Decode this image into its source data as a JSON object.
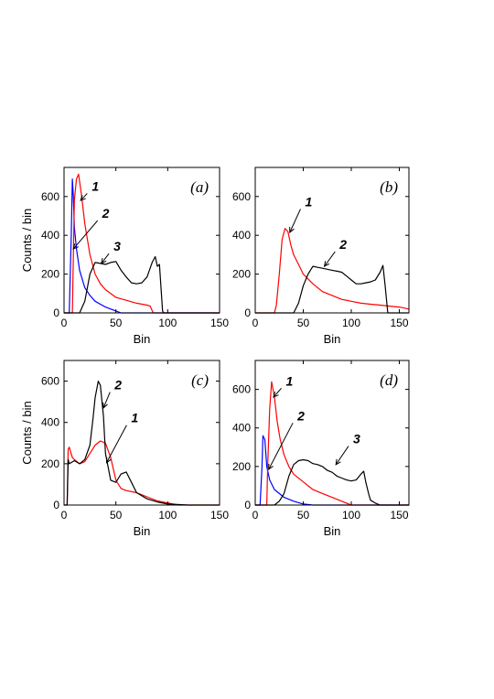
{
  "chart_data": [
    {
      "type": "line",
      "panel_label": "(a)",
      "xlabel": "Bin",
      "ylabel": "Counts / bin",
      "xlim": [
        0,
        150
      ],
      "ylim": [
        0,
        750
      ],
      "xticks": [
        0,
        50,
        100,
        150
      ],
      "yticks": [
        0,
        200,
        400,
        600
      ],
      "series": [
        {
          "name": "",
          "color": "#0000ff",
          "x": [
            0,
            5,
            7,
            8,
            9,
            10,
            12,
            15,
            20,
            25,
            30,
            40,
            50,
            55,
            60,
            80,
            100,
            150
          ],
          "y": [
            0,
            0,
            400,
            690,
            600,
            440,
            330,
            220,
            130,
            90,
            60,
            30,
            10,
            0,
            0,
            0,
            0,
            0
          ]
        },
        {
          "name": "",
          "color": "#ff0000",
          "x": [
            0,
            8,
            9,
            10,
            12,
            14,
            17,
            20,
            25,
            30,
            35,
            40,
            50,
            60,
            70,
            80,
            83,
            86,
            150
          ],
          "y": [
            0,
            0,
            300,
            580,
            690,
            715,
            600,
            460,
            300,
            200,
            150,
            120,
            80,
            65,
            50,
            40,
            35,
            0,
            0
          ]
        },
        {
          "name": "",
          "color": "#000000",
          "x": [
            0,
            15,
            20,
            25,
            30,
            35,
            40,
            45,
            50,
            55,
            60,
            65,
            70,
            75,
            80,
            85,
            88,
            90,
            92,
            95,
            96,
            150
          ],
          "y": [
            0,
            0,
            60,
            200,
            260,
            255,
            250,
            260,
            265,
            220,
            185,
            155,
            150,
            155,
            185,
            260,
            290,
            240,
            250,
            10,
            0,
            0
          ]
        }
      ],
      "curve_labels": [
        {
          "text": "1",
          "x": 25,
          "y": 630,
          "to_x": 16,
          "to_y": 580
        },
        {
          "text": "2",
          "x": 35,
          "y": 490,
          "to_x": 9,
          "to_y": 330
        },
        {
          "text": "3",
          "x": 46,
          "y": 320,
          "to_x": 36,
          "to_y": 255
        }
      ]
    },
    {
      "type": "line",
      "panel_label": "(b)",
      "xlabel": "Bin",
      "ylabel": "",
      "xlim": [
        0,
        160
      ],
      "ylim": [
        0,
        750
      ],
      "xticks": [
        0,
        50,
        100,
        150
      ],
      "yticks": [
        0,
        200,
        400,
        600
      ],
      "series": [
        {
          "name": "",
          "color": "#ff0000",
          "x": [
            0,
            20,
            22,
            25,
            28,
            31,
            34,
            37,
            40,
            45,
            50,
            60,
            70,
            80,
            90,
            100,
            110,
            120,
            130,
            140,
            150,
            160
          ],
          "y": [
            0,
            0,
            40,
            200,
            380,
            435,
            420,
            350,
            300,
            250,
            200,
            150,
            110,
            90,
            70,
            60,
            50,
            45,
            40,
            35,
            30,
            20
          ]
        },
        {
          "name": "",
          "color": "#000000",
          "x": [
            0,
            40,
            45,
            50,
            55,
            60,
            65,
            70,
            75,
            80,
            85,
            90,
            95,
            100,
            105,
            110,
            115,
            120,
            125,
            130,
            133,
            135,
            138,
            160
          ],
          "y": [
            0,
            0,
            50,
            140,
            200,
            240,
            235,
            230,
            225,
            220,
            215,
            210,
            190,
            170,
            150,
            150,
            155,
            160,
            170,
            210,
            245,
            150,
            0,
            0
          ]
        }
      ],
      "curve_labels": [
        {
          "text": "1",
          "x": 50,
          "y": 550,
          "to_x": 36,
          "to_y": 415
        },
        {
          "text": "2",
          "x": 86,
          "y": 330,
          "to_x": 72,
          "to_y": 240
        }
      ]
    },
    {
      "type": "line",
      "panel_label": "(c)",
      "xlabel": "Bin",
      "ylabel": "Counts / bin",
      "xlim": [
        0,
        150
      ],
      "ylim": [
        0,
        700
      ],
      "xticks": [
        0,
        50,
        100,
        150
      ],
      "yticks": [
        0,
        200,
        400,
        600
      ],
      "series": [
        {
          "name": "",
          "color": "#ff0000",
          "x": [
            0,
            3,
            4,
            5,
            8,
            10,
            15,
            20,
            25,
            30,
            35,
            40,
            45,
            50,
            55,
            60,
            70,
            80,
            90,
            100,
            110,
            150
          ],
          "y": [
            0,
            0,
            270,
            280,
            230,
            220,
            200,
            210,
            250,
            290,
            310,
            300,
            230,
            120,
            80,
            70,
            60,
            40,
            20,
            10,
            0,
            0
          ]
        },
        {
          "name": "",
          "color": "#000000",
          "x": [
            0,
            3,
            4,
            5,
            10,
            15,
            20,
            25,
            28,
            30,
            33,
            35,
            38,
            40,
            45,
            50,
            55,
            60,
            65,
            70,
            80,
            90,
            100,
            120,
            150
          ],
          "y": [
            0,
            0,
            220,
            200,
            215,
            200,
            220,
            290,
            420,
            520,
            600,
            580,
            430,
            250,
            120,
            110,
            150,
            160,
            110,
            60,
            30,
            15,
            5,
            0,
            0
          ]
        }
      ],
      "curve_labels": [
        {
          "text": "2",
          "x": 47,
          "y": 560,
          "to_x": 38,
          "to_y": 470
        },
        {
          "text": "1",
          "x": 63,
          "y": 400,
          "to_x": 41,
          "to_y": 205
        }
      ]
    },
    {
      "type": "line",
      "panel_label": "(d)",
      "xlabel": "Bin",
      "ylabel": "",
      "xlim": [
        0,
        160
      ],
      "ylim": [
        0,
        750
      ],
      "xticks": [
        0,
        50,
        100,
        150
      ],
      "yticks": [
        0,
        200,
        400,
        600
      ],
      "series": [
        {
          "name": "",
          "color": "#0000ff",
          "x": [
            0,
            5,
            7,
            8,
            10,
            12,
            15,
            20,
            25,
            30,
            40,
            50,
            60,
            160
          ],
          "y": [
            0,
            0,
            200,
            360,
            340,
            200,
            130,
            80,
            60,
            40,
            20,
            5,
            0,
            0
          ]
        },
        {
          "name": "",
          "color": "#ff0000",
          "x": [
            0,
            12,
            13,
            15,
            17,
            20,
            23,
            26,
            30,
            35,
            40,
            50,
            60,
            70,
            80,
            90,
            100,
            160
          ],
          "y": [
            0,
            0,
            200,
            500,
            640,
            560,
            430,
            340,
            260,
            200,
            160,
            120,
            80,
            60,
            40,
            20,
            0,
            0
          ]
        },
        {
          "name": "",
          "color": "#000000",
          "x": [
            0,
            20,
            25,
            30,
            35,
            40,
            45,
            50,
            55,
            60,
            65,
            70,
            75,
            80,
            85,
            90,
            95,
            100,
            105,
            110,
            113,
            115,
            118,
            120,
            125,
            130,
            160
          ],
          "y": [
            0,
            0,
            20,
            60,
            150,
            210,
            230,
            235,
            230,
            215,
            210,
            200,
            180,
            170,
            150,
            140,
            130,
            125,
            130,
            160,
            175,
            120,
            60,
            25,
            10,
            0,
            0
          ]
        }
      ],
      "curve_labels": [
        {
          "text": "1",
          "x": 30,
          "y": 620,
          "to_x": 19,
          "to_y": 560
        },
        {
          "text": "2",
          "x": 42,
          "y": 440,
          "to_x": 14,
          "to_y": 185
        },
        {
          "text": "3",
          "x": 100,
          "y": 320,
          "to_x": 84,
          "to_y": 210
        }
      ]
    }
  ]
}
